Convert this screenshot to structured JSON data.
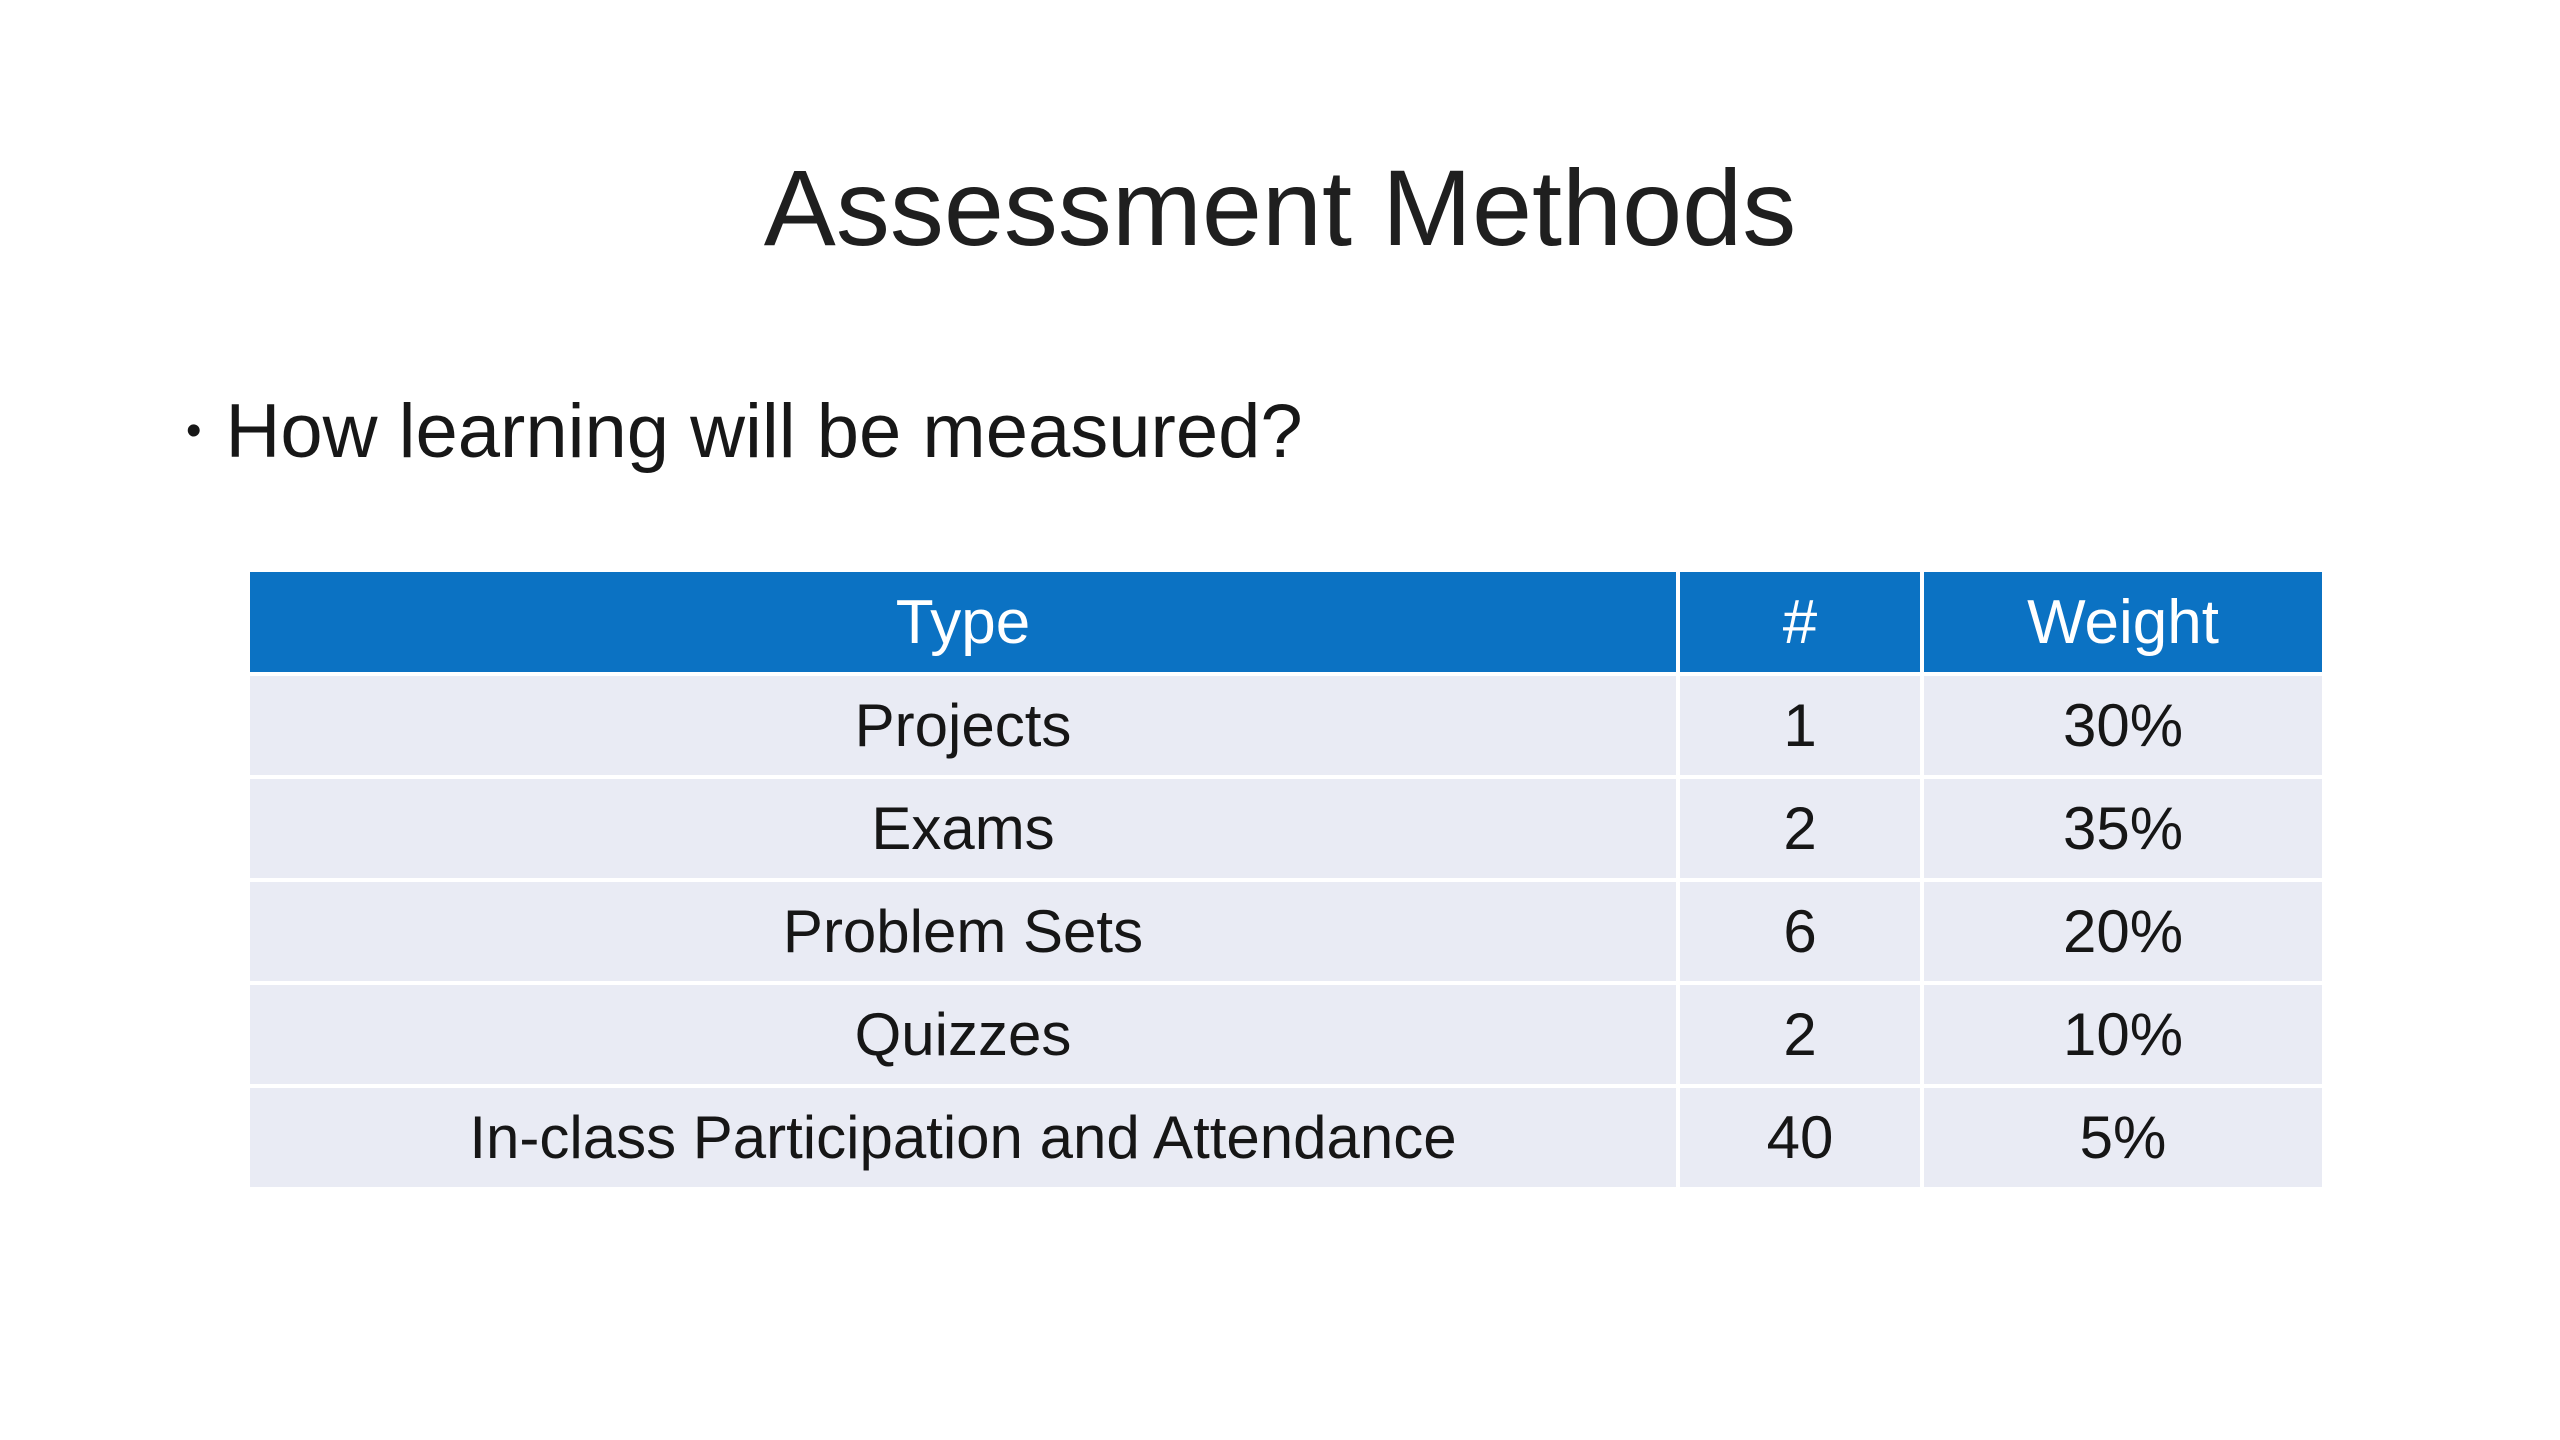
{
  "slide": {
    "title": "Assessment Methods",
    "bullet_char": "•",
    "bullet": "How learning will be measured?"
  },
  "table": {
    "headers": [
      "Type",
      "#",
      "Weight"
    ],
    "rows": [
      {
        "type": "Projects",
        "count": "1",
        "weight": "30%"
      },
      {
        "type": "Exams",
        "count": "2",
        "weight": "35%"
      },
      {
        "type": "Problem Sets",
        "count": "6",
        "weight": "20%"
      },
      {
        "type": "Quizzes",
        "count": "2",
        "weight": "10%"
      },
      {
        "type": "In-class Participation and Attendance",
        "count": "40",
        "weight": "5%"
      }
    ]
  },
  "colors": {
    "header_bg": "#0b72c3",
    "header_text": "#ffffff",
    "row_bg": "#e9ebf4",
    "body_text": "#1a1a1a",
    "grid_line": "#ffffff"
  }
}
